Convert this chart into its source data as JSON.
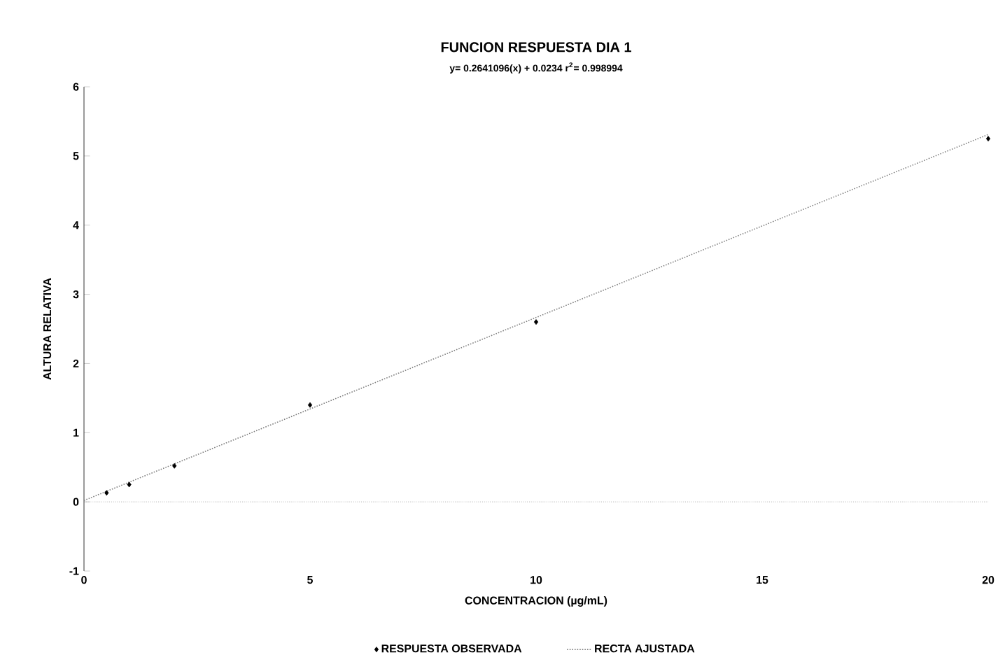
{
  "chart_data": {
    "type": "scatter",
    "title": "FUNCION RESPUESTA DIA 1",
    "subtitle": "y= 0.2641096(x) + 0.0234 r$^{2}$= 0.998994",
    "xlabel": "CONCENTRACION (µg/mL)",
    "ylabel": "ALTURA RELATIVA",
    "xlim": [
      0,
      20
    ],
    "ylim": [
      -1,
      6
    ],
    "xticks": [
      0,
      5,
      10,
      15,
      20
    ],
    "yticks": [
      -1,
      0,
      1,
      2,
      3,
      4,
      5,
      6
    ],
    "legend": "bottom",
    "marker": "diamond",
    "grid": false,
    "ref_lines": [
      {
        "axis": "y",
        "value": 0,
        "color": "#808080",
        "line_style": "dotted"
      }
    ],
    "series": [
      {
        "name": "RESPUESTA OBSERVADA",
        "color": "#000000",
        "x": [
          0.5,
          1,
          2,
          5,
          10,
          20
        ],
        "values": [
          0.13,
          0.25,
          0.52,
          1.4,
          2.6,
          5.25
        ]
      },
      {
        "name": "RECTA AJUSTADA",
        "type": "line",
        "color": "#808080",
        "line_style": "dotted",
        "marker": "none",
        "x": [
          0,
          20
        ],
        "values": [
          0.02,
          5.31
        ]
      }
    ]
  }
}
